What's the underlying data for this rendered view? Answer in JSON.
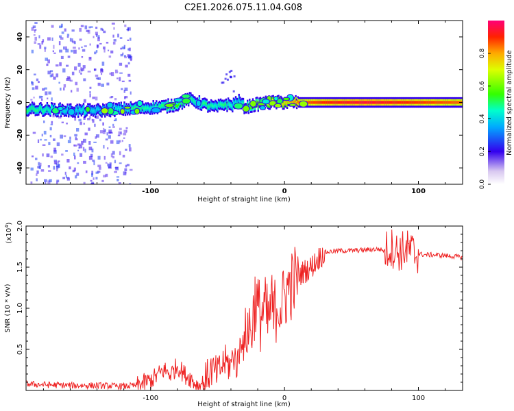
{
  "figure": {
    "title": "C2E1.2026.075.11.04.G08"
  },
  "colors": {
    "axis": "#000000",
    "snr_line": "#ee2222",
    "background": "#ffffff"
  },
  "chart_data": [
    {
      "type": "heatmap",
      "title": "C2E1.2026.075.11.04.G08",
      "xlabel": "Height of straight line (km)",
      "ylabel": "Frequency (Hz)",
      "xlim": [
        -193,
        133
      ],
      "ylim": [
        -50,
        50
      ],
      "xticks": [
        -100,
        0,
        100
      ],
      "xtick_labels": [
        "-100",
        "0",
        "100"
      ],
      "yticks": [
        -40,
        -20,
        0,
        20,
        40
      ],
      "ytick_labels": [
        "-40",
        "-20",
        "0",
        "20",
        "40"
      ],
      "colorbar": {
        "label": "Normalized spectral amplitude",
        "range": [
          0,
          1
        ],
        "ticks": [
          0.0,
          0.2,
          0.4,
          0.6,
          0.8
        ],
        "tick_labels": [
          "0.0",
          "0.2",
          "0.4",
          "0.6",
          "0.8"
        ]
      },
      "ridge": {
        "x": [
          -193,
          -170,
          -160,
          -150,
          -140,
          -130,
          -120,
          -110,
          -100,
          -90,
          -80,
          -72,
          -65,
          -58,
          -52,
          -45,
          -40,
          -35,
          -30,
          -25,
          -20,
          -10,
          0,
          10,
          30,
          60,
          90,
          133
        ],
        "freq": [
          -4,
          -4.5,
          -5,
          -5,
          -5,
          -4.5,
          -4,
          -3.5,
          -3,
          -2.5,
          -1,
          2,
          0,
          -2,
          -3,
          -1,
          -2,
          1,
          -3,
          -2,
          -1,
          0,
          0,
          0,
          0,
          0,
          0,
          0
        ],
        "intensity": [
          0.5,
          0.45,
          0.4,
          0.45,
          0.4,
          0.4,
          0.45,
          0.5,
          0.45,
          0.5,
          0.55,
          0.5,
          0.45,
          0.5,
          0.45,
          0.5,
          0.45,
          0.4,
          0.5,
          0.55,
          0.6,
          0.7,
          0.75,
          0.85,
          0.9,
          0.95,
          0.9,
          0.85
        ]
      },
      "scatter_band": {
        "x_range": [
          -190,
          -115
        ],
        "freq_range": [
          -50,
          50
        ],
        "level": 0.15
      }
    },
    {
      "type": "line",
      "xlabel": "Height of straight line (km)",
      "ylabel": "SNR (10 * v/v)",
      "multiplier_label": "(x10",
      "multiplier_exponent": "4",
      "multiplier_close": ")",
      "xlim": [
        -193,
        133
      ],
      "ylim": [
        0,
        2.0
      ],
      "xticks": [
        -100,
        0,
        100
      ],
      "xtick_labels": [
        "-100",
        "0",
        "100"
      ],
      "yticks": [
        0.5,
        1.0,
        1.5,
        2.0
      ],
      "ytick_labels": [
        "0.5",
        "1.0",
        "1.5",
        "2.0"
      ],
      "series": [
        {
          "name": "SNR",
          "x": [
            -193,
            -180,
            -160,
            -140,
            -120,
            -110,
            -100,
            -95,
            -90,
            -85,
            -80,
            -75,
            -70,
            -65,
            -60,
            -55,
            -50,
            -45,
            -40,
            -38,
            -35,
            -32,
            -30,
            -28,
            -25,
            -22,
            -20,
            -18,
            -15,
            -12,
            -10,
            -8,
            -5,
            -2,
            0,
            3,
            6,
            10,
            15,
            20,
            25,
            30,
            40,
            50,
            60,
            70,
            75,
            80,
            85,
            90,
            95,
            98,
            100,
            105,
            110,
            120,
            133
          ],
          "y": [
            0.08,
            0.07,
            0.06,
            0.06,
            0.05,
            0.06,
            0.12,
            0.18,
            0.25,
            0.2,
            0.3,
            0.2,
            0.15,
            0.05,
            0.1,
            0.25,
            0.2,
            0.35,
            0.3,
            0.45,
            0.3,
            0.7,
            0.5,
            0.8,
            0.7,
            1.1,
            1.0,
            0.9,
            1.0,
            0.8,
            1.05,
            0.9,
            1.1,
            1.0,
            1.15,
            1.25,
            1.3,
            1.4,
            1.45,
            1.5,
            1.6,
            1.68,
            1.7,
            1.7,
            1.71,
            1.72,
            1.7,
            1.74,
            1.68,
            1.72,
            1.7,
            1.65,
            1.66,
            1.65,
            1.65,
            1.64,
            1.62
          ]
        }
      ],
      "noise": [
        {
          "x_range": [
            -193,
            -110
          ],
          "amplitude": 0.04
        },
        {
          "x_range": [
            -110,
            -60
          ],
          "amplitude": 0.12
        },
        {
          "x_range": [
            -60,
            -30
          ],
          "amplitude": 0.22
        },
        {
          "x_range": [
            -30,
            10
          ],
          "amplitude": 0.45
        },
        {
          "x_range": [
            10,
            30
          ],
          "amplitude": 0.15
        },
        {
          "x_range": [
            30,
            75
          ],
          "amplitude": 0.03
        },
        {
          "x_range": [
            75,
            100
          ],
          "amplitude": 0.25
        },
        {
          "x_range": [
            100,
            133
          ],
          "amplitude": 0.03
        }
      ]
    }
  ]
}
